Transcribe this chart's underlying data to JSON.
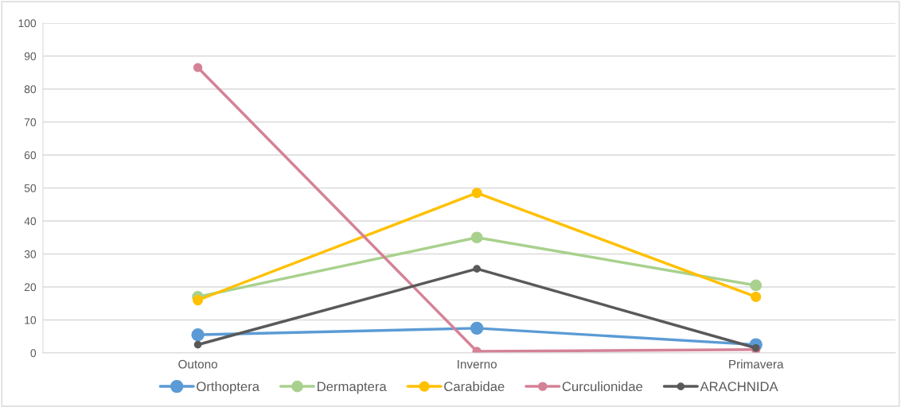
{
  "chart_data": {
    "type": "line",
    "categories": [
      "Outono",
      "Inverno",
      "Primavera"
    ],
    "series": [
      {
        "name": "Orthoptera",
        "color": "#5b9bd5",
        "values": [
          5.5,
          7.5,
          2.5
        ]
      },
      {
        "name": "Dermaptera",
        "color": "#a9d18e",
        "values": [
          17,
          35,
          20.5
        ]
      },
      {
        "name": "Carabidae",
        "color": "#ffc000",
        "values": [
          16,
          48.5,
          17
        ]
      },
      {
        "name": "Curculionidae",
        "color": "#d48296",
        "values": [
          86.5,
          0.5,
          1
        ]
      },
      {
        "name": "ARACHNIDA",
        "color": "#595959",
        "values": [
          2.5,
          25.5,
          1.5
        ]
      }
    ],
    "ylim": [
      0,
      100
    ],
    "yticks": [
      0,
      10,
      20,
      30,
      40,
      50,
      60,
      70,
      80,
      90,
      100
    ],
    "grid": "y",
    "legend": "bottom",
    "marker": "circle",
    "line_style": "solid"
  }
}
